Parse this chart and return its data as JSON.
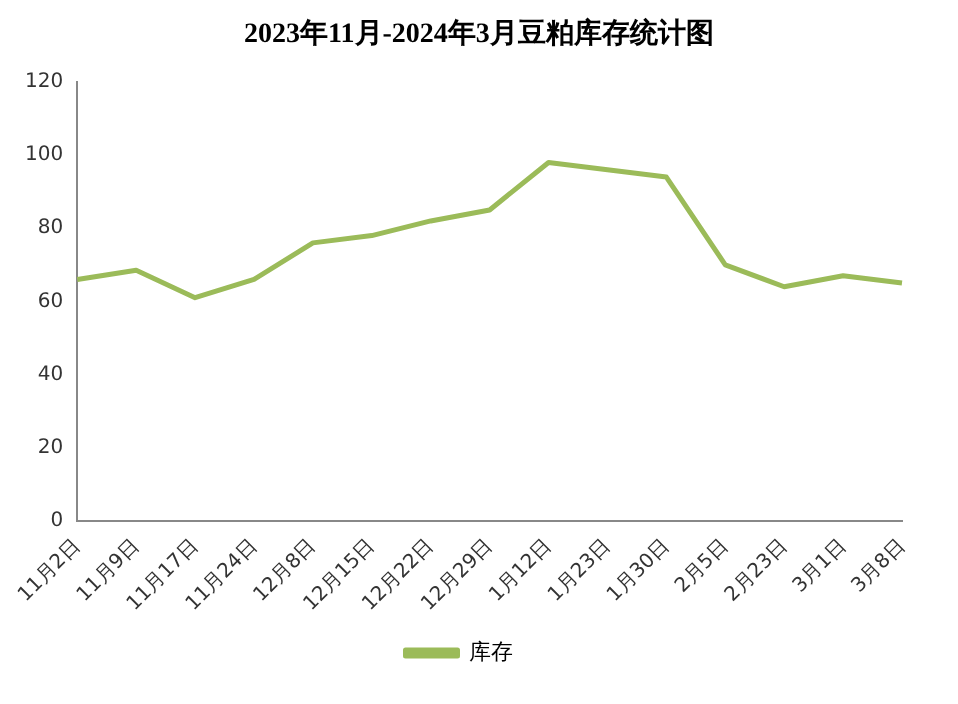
{
  "chart_data": {
    "type": "line",
    "title": "2023年11月-2024年3月豆粕库存统计图",
    "categories": [
      "11月2日",
      "11月9日",
      "11月17日",
      "11月24日",
      "12月8日",
      "12月15日",
      "12月22日",
      "12月29日",
      "1月12日",
      "1月23日",
      "1月30日",
      "2月5日",
      "2月23日",
      "3月1日",
      "3月8日"
    ],
    "series": [
      {
        "name": "库存",
        "color": "#9bbb59",
        "values": [
          66,
          68.5,
          61,
          66,
          76,
          78,
          82,
          85,
          98,
          96,
          94,
          70,
          64,
          67,
          65
        ]
      }
    ],
    "ylim": [
      0,
      120
    ],
    "yticks": [
      0,
      20,
      40,
      60,
      80,
      100,
      120
    ],
    "grid": false,
    "legend": "bottom",
    "marker": "none",
    "line_style": "solid"
  }
}
